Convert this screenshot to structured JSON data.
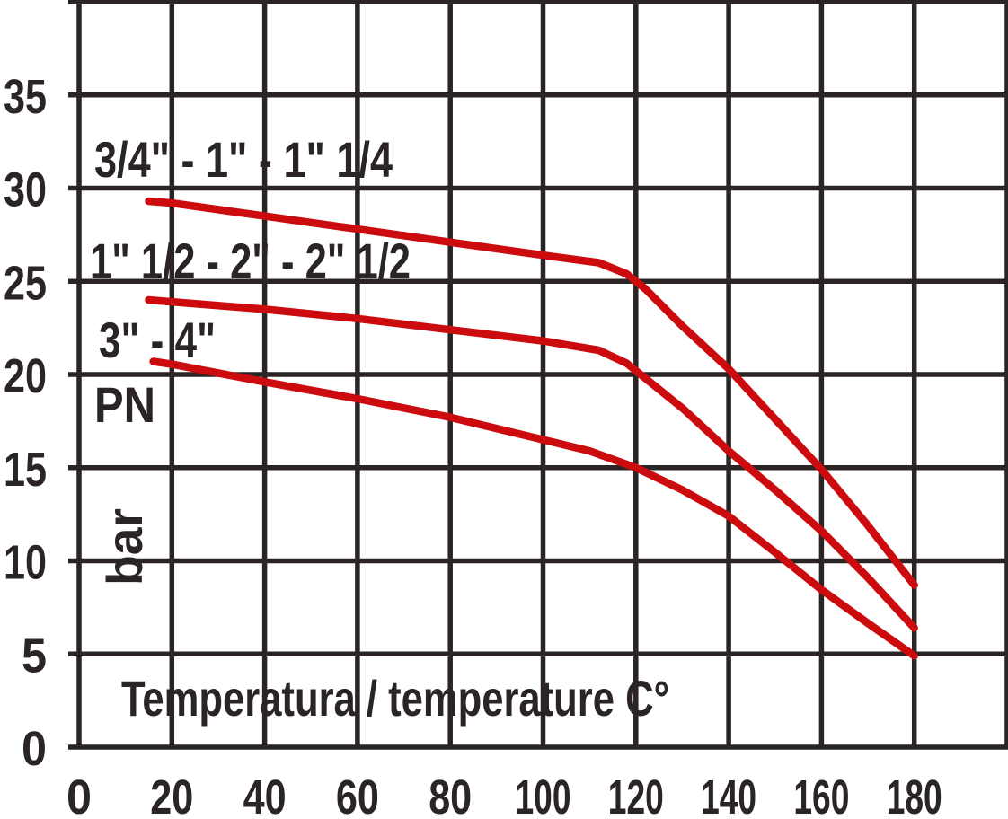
{
  "chart_data": {
    "type": "line",
    "title": "",
    "xlabel": "Temperatura / temperature C°",
    "ylabel": "PN (bar)",
    "y_unit_primary": "PN",
    "y_unit_secondary": "bar",
    "x_ticks": [
      0,
      20,
      40,
      60,
      80,
      100,
      120,
      140,
      160,
      180
    ],
    "y_ticks": [
      0,
      5,
      10,
      15,
      20,
      25,
      30,
      35
    ],
    "x_grid_range": [
      0,
      200
    ],
    "y_grid_range": [
      0,
      40
    ],
    "grid": true,
    "legend_position": "inline-labels",
    "colors": {
      "line": "#CC0B0E",
      "grid": "#2A2424",
      "text": "#2A2424",
      "background": "#FFFFFF"
    },
    "series": [
      {
        "label": "3/4\" - 1\" - 1\" 1/4",
        "points": [
          [
            15,
            29.3
          ],
          [
            20,
            29.2
          ],
          [
            40,
            28.5
          ],
          [
            60,
            27.8
          ],
          [
            80,
            27.1
          ],
          [
            100,
            26.4
          ],
          [
            112,
            26.0
          ],
          [
            118,
            25.4
          ],
          [
            122,
            24.6
          ],
          [
            130,
            22.6
          ],
          [
            140,
            20.3
          ],
          [
            150,
            17.6
          ],
          [
            160,
            14.9
          ],
          [
            170,
            11.9
          ],
          [
            180,
            8.7
          ]
        ]
      },
      {
        "label": "1\" 1/2 - 2\" - 2\" 1/2",
        "points": [
          [
            15,
            24.0
          ],
          [
            20,
            23.9
          ],
          [
            40,
            23.5
          ],
          [
            60,
            23.0
          ],
          [
            80,
            22.4
          ],
          [
            100,
            21.8
          ],
          [
            112,
            21.3
          ],
          [
            118,
            20.6
          ],
          [
            122,
            19.8
          ],
          [
            130,
            18.2
          ],
          [
            140,
            15.9
          ],
          [
            150,
            13.8
          ],
          [
            160,
            11.6
          ],
          [
            170,
            9.1
          ],
          [
            180,
            6.4
          ]
        ]
      },
      {
        "label": "3\" - 4\"",
        "points": [
          [
            16,
            20.7
          ],
          [
            20,
            20.55
          ],
          [
            40,
            19.6
          ],
          [
            60,
            18.7
          ],
          [
            80,
            17.7
          ],
          [
            100,
            16.5
          ],
          [
            110,
            15.9
          ],
          [
            120,
            15.0
          ],
          [
            130,
            13.8
          ],
          [
            140,
            12.4
          ],
          [
            150,
            10.45
          ],
          [
            160,
            8.45
          ],
          [
            170,
            6.65
          ],
          [
            180,
            4.9
          ]
        ]
      }
    ]
  }
}
